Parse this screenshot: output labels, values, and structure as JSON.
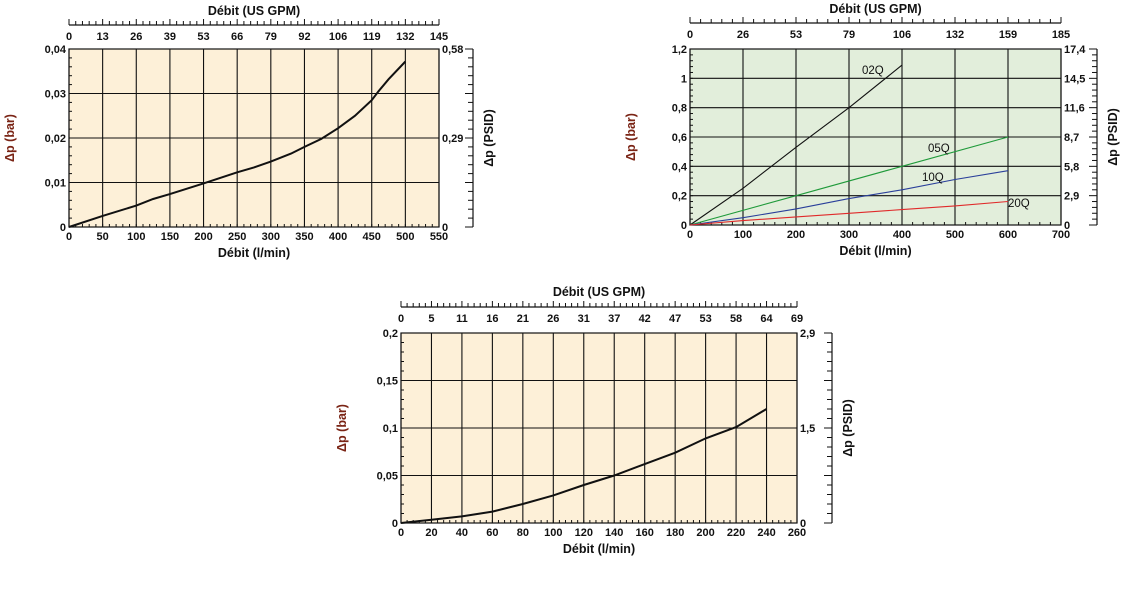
{
  "chart_data": [
    {
      "type": "line",
      "title": "Débit (US GPM)",
      "xlabel": "Débit (l/min)",
      "ylabel": "Δp (bar)",
      "y2label": "Δp (PSID)",
      "xlim": [
        0,
        550
      ],
      "ylim": [
        0,
        0.04
      ],
      "grid": true,
      "background": "#fdf0d8",
      "x_ticks": [
        "0",
        "50",
        "100",
        "150",
        "200",
        "250",
        "300",
        "350",
        "400",
        "450",
        "500",
        "550"
      ],
      "x_tick_values": [
        0,
        50,
        100,
        150,
        200,
        250,
        300,
        350,
        400,
        450,
        500,
        550
      ],
      "x2_ticks": [
        "0",
        "13",
        "26",
        "39",
        "53",
        "66",
        "79",
        "92",
        "106",
        "119",
        "132",
        "145"
      ],
      "y_ticks": [
        "0",
        "0,01",
        "0,02",
        "0,03",
        "0,04"
      ],
      "y_tick_values": [
        0,
        0.01,
        0.02,
        0.03,
        0.04
      ],
      "y2_ticks": [
        "0",
        "0,29",
        "0,58"
      ],
      "y2_tick_values": [
        0,
        0.02,
        0.04
      ],
      "series": [
        {
          "name": "",
          "color": "#111111",
          "x": [
            0,
            50,
            100,
            125,
            150,
            200,
            250,
            275,
            300,
            330,
            350,
            375,
            400,
            425,
            450,
            460,
            475,
            500
          ],
          "y": [
            0,
            0.0025,
            0.0048,
            0.0063,
            0.0074,
            0.0098,
            0.0123,
            0.0134,
            0.0147,
            0.0165,
            0.018,
            0.0198,
            0.0222,
            0.025,
            0.0285,
            0.0305,
            0.0332,
            0.0372
          ]
        }
      ]
    },
    {
      "type": "line",
      "title": "Débit (US GPM)",
      "xlabel": "Débit (l/min)",
      "ylabel": "Δp (bar)",
      "y2label": "Δp (PSID)",
      "xlim": [
        0,
        700
      ],
      "ylim": [
        0,
        1.2
      ],
      "grid": true,
      "background": "#e2eedb",
      "x_ticks": [
        "0",
        "100",
        "200",
        "300",
        "400",
        "500",
        "600",
        "700"
      ],
      "x_tick_values": [
        0,
        100,
        200,
        300,
        400,
        500,
        600,
        700
      ],
      "x2_ticks": [
        "0",
        "26",
        "53",
        "79",
        "106",
        "132",
        "159",
        "185"
      ],
      "y_ticks": [
        "0",
        "0,2",
        "0,4",
        "0,6",
        "0,8",
        "1",
        "1,2"
      ],
      "y_tick_values": [
        0,
        0.2,
        0.4,
        0.6,
        0.8,
        1.0,
        1.2
      ],
      "y2_ticks": [
        "0",
        "2,9",
        "5,8",
        "8,7",
        "11,6",
        "14,5",
        "17,4"
      ],
      "y2_tick_values": [
        0,
        0.2,
        0.4,
        0.6,
        0.8,
        1.0,
        1.2
      ],
      "series": [
        {
          "name": "02Q",
          "color": "#111111",
          "x": [
            0,
            100,
            200,
            300,
            400
          ],
          "y": [
            0,
            0.25,
            0.53,
            0.8,
            1.09
          ]
        },
        {
          "name": "05Q",
          "color": "#1f9a3a",
          "x": [
            0,
            200,
            400,
            600
          ],
          "y": [
            0,
            0.2,
            0.4,
            0.6
          ]
        },
        {
          "name": "10Q",
          "color": "#2a3f9a",
          "x": [
            0,
            100,
            200,
            300,
            400,
            500,
            600
          ],
          "y": [
            0,
            0.05,
            0.11,
            0.18,
            0.24,
            0.31,
            0.37
          ]
        },
        {
          "name": "20Q",
          "color": "#e02a2a",
          "x": [
            0,
            100,
            200,
            300,
            400,
            500,
            600
          ],
          "y": [
            0,
            0.03,
            0.055,
            0.08,
            0.105,
            0.13,
            0.16
          ]
        }
      ]
    },
    {
      "type": "line",
      "title": "Débit (US GPM)",
      "xlabel": "Débit (l/min)",
      "ylabel": "Δp (bar)",
      "y2label": "Δp (PSID)",
      "xlim": [
        0,
        260
      ],
      "ylim": [
        0,
        0.2
      ],
      "grid": true,
      "background": "#fdf0d8",
      "x_ticks": [
        "0",
        "20",
        "40",
        "60",
        "80",
        "100",
        "120",
        "140",
        "160",
        "180",
        "200",
        "220",
        "240",
        "260"
      ],
      "x_tick_values": [
        0,
        20,
        40,
        60,
        80,
        100,
        120,
        140,
        160,
        180,
        200,
        220,
        240,
        260
      ],
      "x2_ticks": [
        "0",
        "5",
        "11",
        "16",
        "21",
        "26",
        "31",
        "37",
        "42",
        "47",
        "53",
        "58",
        "64",
        "69"
      ],
      "y_ticks": [
        "0",
        "0,05",
        "0,1",
        "0,15",
        "0,2"
      ],
      "y_tick_values": [
        0,
        0.05,
        0.1,
        0.15,
        0.2
      ],
      "y2_ticks": [
        "0",
        "1,5",
        "2,9"
      ],
      "y2_tick_values": [
        0,
        0.1,
        0.2
      ],
      "series": [
        {
          "name": "",
          "color": "#111111",
          "x": [
            0,
            20,
            40,
            60,
            80,
            100,
            120,
            140,
            160,
            180,
            200,
            220,
            240
          ],
          "y": [
            0,
            0.0035,
            0.007,
            0.012,
            0.02,
            0.029,
            0.04,
            0.05,
            0.062,
            0.074,
            0.089,
            0.101,
            0.12
          ]
        }
      ]
    }
  ]
}
